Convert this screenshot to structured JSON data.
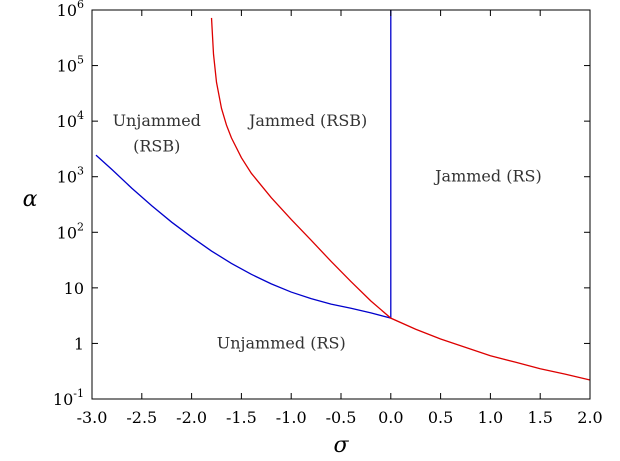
{
  "chart_data": {
    "type": "line",
    "title": "",
    "xlabel": "σ",
    "ylabel": "α",
    "xlim": [
      -3.0,
      2.0
    ],
    "ylim_log10": [
      -1,
      6
    ],
    "yscale": "log",
    "grid": false,
    "legend": "none",
    "x_ticks": [
      -3.0,
      -2.5,
      -2.0,
      -1.5,
      -1.0,
      -0.5,
      0.0,
      0.5,
      1.0,
      1.5,
      2.0
    ],
    "x_tick_labels": [
      "-3.0",
      "-2.5",
      "-2.0",
      "-1.5",
      "-1.0",
      "-0.5",
      "0.0",
      "0.5",
      "1.0",
      "1.5",
      "2.0"
    ],
    "y_ticks": [
      {
        "value": 0.1,
        "base": "10",
        "exp": "-1"
      },
      {
        "value": 1,
        "base": "1",
        "exp": ""
      },
      {
        "value": 10,
        "base": "10",
        "exp": ""
      },
      {
        "value": 100,
        "base": "10",
        "exp": "2"
      },
      {
        "value": 1000,
        "base": "10",
        "exp": "3"
      },
      {
        "value": 10000,
        "base": "10",
        "exp": "4"
      },
      {
        "value": 100000,
        "base": "10",
        "exp": "5"
      },
      {
        "value": 1000000,
        "base": "10",
        "exp": "6"
      }
    ],
    "series": [
      {
        "color": "#0000cc",
        "points": [
          [
            -2.96,
            2450
          ],
          [
            -2.8,
            1350
          ],
          [
            -2.6,
            620
          ],
          [
            -2.4,
            300
          ],
          [
            -2.2,
            152
          ],
          [
            -2.0,
            82
          ],
          [
            -1.8,
            46
          ],
          [
            -1.6,
            27.5
          ],
          [
            -1.4,
            17.5
          ],
          [
            -1.2,
            11.8
          ],
          [
            -1.0,
            8.4
          ],
          [
            -0.8,
            6.4
          ],
          [
            -0.6,
            5.1
          ],
          [
            -0.4,
            4.3
          ],
          [
            -0.2,
            3.55
          ],
          [
            0.0,
            2.85
          ]
        ]
      },
      {
        "color": "#0000cc",
        "points": [
          [
            0.0,
            2.85
          ],
          [
            0.0,
            1000000
          ]
        ]
      },
      {
        "color": "#dd0000",
        "points": [
          [
            -1.8,
            720000
          ],
          [
            -1.78,
            160000
          ],
          [
            -1.75,
            50000
          ],
          [
            -1.7,
            17000
          ],
          [
            -1.65,
            8500
          ],
          [
            -1.6,
            5000
          ],
          [
            -1.5,
            2200
          ],
          [
            -1.4,
            1150
          ],
          [
            -1.2,
            420
          ],
          [
            -1.0,
            170
          ],
          [
            -0.8,
            72
          ],
          [
            -0.6,
            30
          ],
          [
            -0.4,
            13
          ],
          [
            -0.2,
            5.8
          ],
          [
            0.0,
            2.85
          ],
          [
            0.25,
            1.8
          ],
          [
            0.5,
            1.2
          ],
          [
            0.75,
            0.85
          ],
          [
            1.0,
            0.6
          ],
          [
            1.25,
            0.46
          ],
          [
            1.5,
            0.35
          ],
          [
            1.75,
            0.28
          ],
          [
            2.0,
            0.22
          ]
        ]
      }
    ],
    "annotations": [
      {
        "text": "Unjammed",
        "x": -2.35,
        "y": 10000
      },
      {
        "text": "(RSB)",
        "x": -2.35,
        "y": 3500
      },
      {
        "text": "Jammed (RSB)",
        "x": -0.83,
        "y": 10000
      },
      {
        "text": "Jammed (RS)",
        "x": 0.98,
        "y": 1000
      },
      {
        "text": "Unjammed (RS)",
        "x": -1.1,
        "y": 1.0
      }
    ]
  }
}
